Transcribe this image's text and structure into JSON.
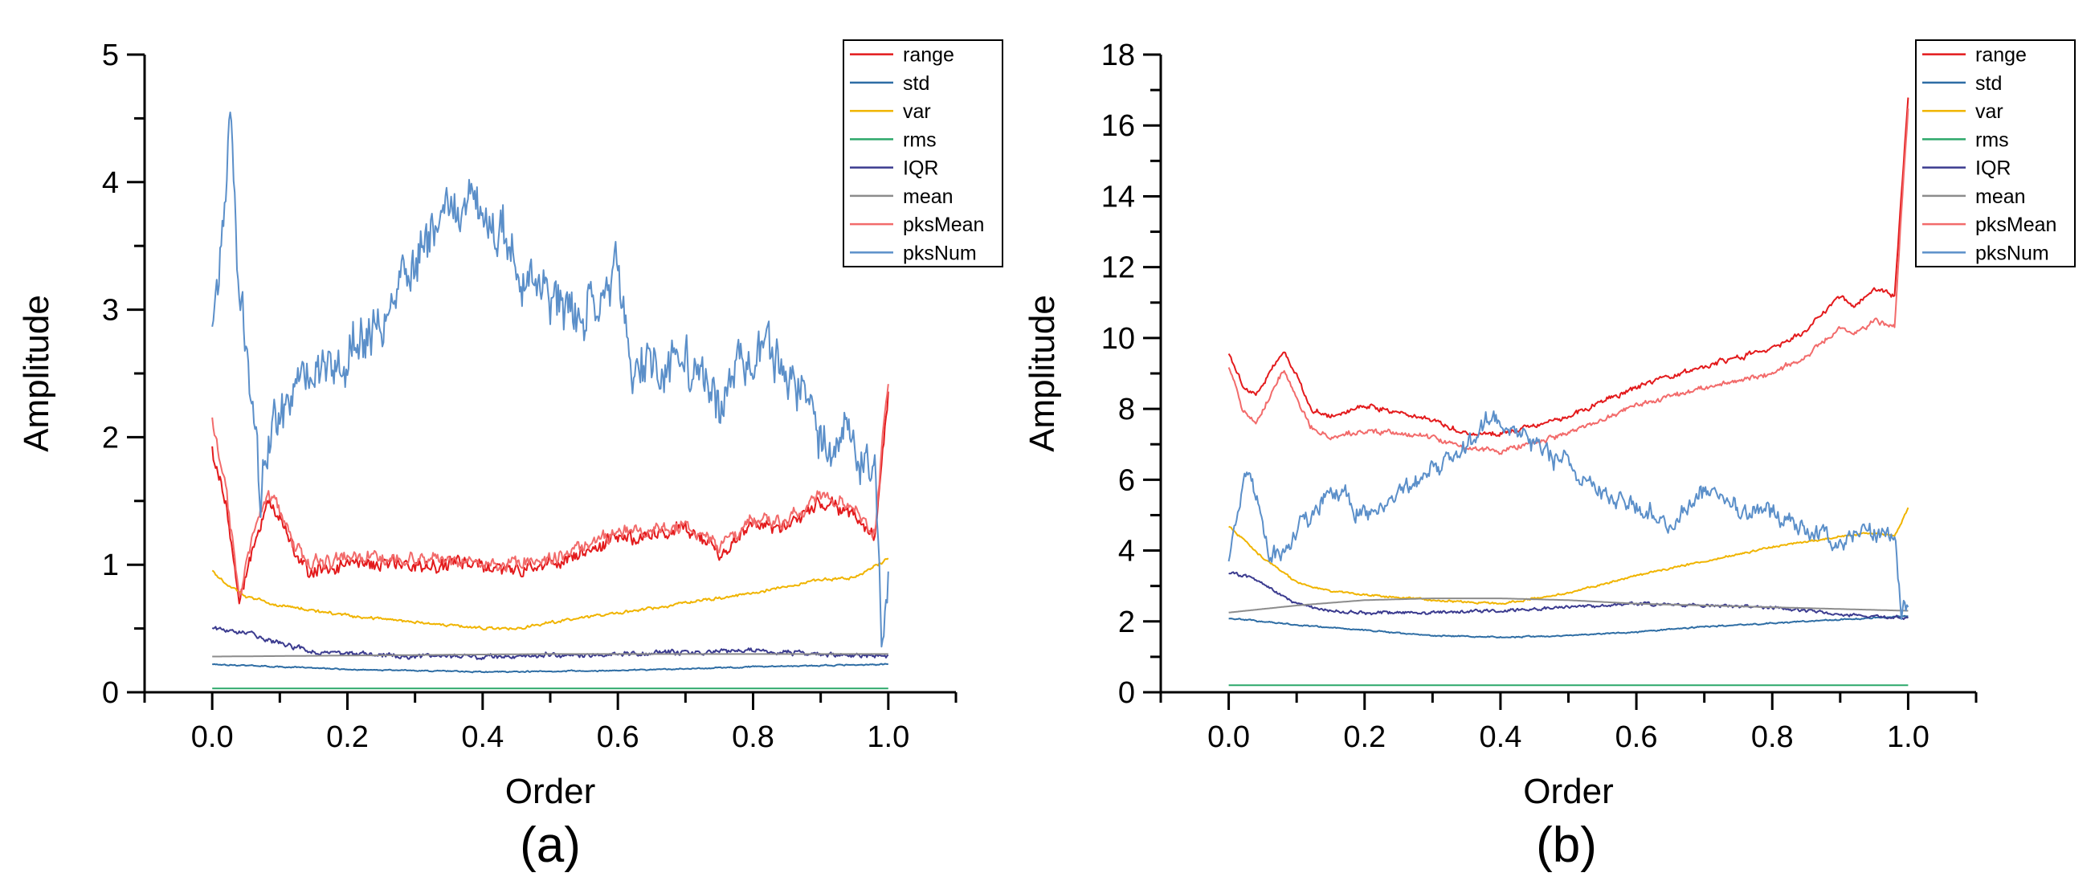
{
  "chart_data": [
    {
      "type": "line",
      "panel_label": "(a)",
      "xlabel": "Order",
      "ylabel": "Amplitude",
      "xlim": [
        -0.1,
        1.1
      ],
      "ylim": [
        0,
        5
      ],
      "xticks": [
        0.0,
        0.2,
        0.4,
        0.6,
        0.8,
        1.0
      ],
      "xtick_labels": [
        "0.0",
        "0.2",
        "0.4",
        "0.6",
        "0.8",
        "1.0"
      ],
      "yticks": [
        0,
        1,
        2,
        3,
        4,
        5
      ],
      "ytick_labels": [
        "0",
        "1",
        "2",
        "3",
        "4",
        "5"
      ],
      "legend_position": "top-right",
      "series": [
        {
          "name": "range",
          "color": "#e31a1c",
          "noise": 0.06,
          "x": [
            0,
            0.02,
            0.04,
            0.06,
            0.08,
            0.1,
            0.12,
            0.14,
            0.2,
            0.3,
            0.4,
            0.45,
            0.5,
            0.6,
            0.7,
            0.75,
            0.8,
            0.85,
            0.9,
            0.95,
            0.98,
            1.0
          ],
          "y": [
            1.9,
            1.5,
            0.7,
            1.1,
            1.5,
            1.4,
            1.1,
            0.95,
            1.0,
            1.0,
            1.0,
            0.95,
            1.0,
            1.2,
            1.3,
            1.1,
            1.3,
            1.3,
            1.5,
            1.4,
            1.2,
            2.3
          ]
        },
        {
          "name": "std",
          "color": "#2e6da4",
          "noise": 0.005,
          "x": [
            0,
            0.2,
            0.4,
            0.6,
            0.8,
            1.0
          ],
          "y": [
            0.22,
            0.18,
            0.16,
            0.17,
            0.2,
            0.22
          ]
        },
        {
          "name": "var",
          "color": "#f0b400",
          "noise": 0.012,
          "x": [
            0,
            0.02,
            0.05,
            0.1,
            0.2,
            0.3,
            0.4,
            0.45,
            0.5,
            0.6,
            0.7,
            0.8,
            0.9,
            0.95,
            1.0
          ],
          "y": [
            0.95,
            0.85,
            0.75,
            0.68,
            0.6,
            0.55,
            0.5,
            0.5,
            0.55,
            0.62,
            0.7,
            0.78,
            0.88,
            0.9,
            1.05
          ]
        },
        {
          "name": "rms",
          "color": "#2ca86a",
          "noise": 0,
          "x": [
            0,
            1.0
          ],
          "y": [
            0.03,
            0.03
          ]
        },
        {
          "name": "IQR",
          "color": "#3b3b8f",
          "noise": 0.02,
          "x": [
            0,
            0.05,
            0.1,
            0.15,
            0.2,
            0.3,
            0.4,
            0.5,
            0.6,
            0.7,
            0.8,
            0.9,
            1.0
          ],
          "y": [
            0.5,
            0.48,
            0.38,
            0.32,
            0.3,
            0.28,
            0.28,
            0.29,
            0.3,
            0.31,
            0.32,
            0.3,
            0.28
          ]
        },
        {
          "name": "mean",
          "color": "#8c8c8c",
          "noise": 0,
          "x": [
            0,
            0.5,
            1.0
          ],
          "y": [
            0.28,
            0.3,
            0.3
          ]
        },
        {
          "name": "pksMean",
          "color": "#f26b6b",
          "noise": 0.06,
          "x": [
            0,
            0.02,
            0.04,
            0.06,
            0.08,
            0.1,
            0.12,
            0.14,
            0.2,
            0.3,
            0.4,
            0.45,
            0.5,
            0.6,
            0.7,
            0.75,
            0.8,
            0.85,
            0.9,
            0.95,
            0.98,
            1.0
          ],
          "y": [
            2.15,
            1.6,
            0.75,
            1.2,
            1.55,
            1.45,
            1.15,
            1.0,
            1.05,
            1.05,
            1.0,
            1.0,
            1.05,
            1.25,
            1.3,
            1.15,
            1.35,
            1.35,
            1.55,
            1.45,
            1.25,
            2.45
          ]
        },
        {
          "name": "pksNum",
          "color": "#5b8fc9",
          "noise": 0.22,
          "x": [
            0,
            0.01,
            0.02,
            0.025,
            0.03,
            0.04,
            0.06,
            0.07,
            0.08,
            0.1,
            0.15,
            0.2,
            0.25,
            0.3,
            0.35,
            0.4,
            0.45,
            0.5,
            0.55,
            0.6,
            0.62,
            0.65,
            0.7,
            0.75,
            0.8,
            0.85,
            0.9,
            0.95,
            0.98,
            0.99,
            1.0
          ],
          "y": [
            2.8,
            3.3,
            4.0,
            4.5,
            4.3,
            3.2,
            2.2,
            1.6,
            1.9,
            2.2,
            2.5,
            2.7,
            2.9,
            3.4,
            3.8,
            3.85,
            3.4,
            3.1,
            2.9,
            3.3,
            2.5,
            2.5,
            2.6,
            2.3,
            2.7,
            2.5,
            2.0,
            2.0,
            1.6,
            0.6,
            0.9
          ]
        }
      ]
    },
    {
      "type": "line",
      "panel_label": "(b)",
      "xlabel": "Order",
      "ylabel": "Amplitude",
      "xlim": [
        -0.1,
        1.1
      ],
      "ylim": [
        0,
        18
      ],
      "xticks": [
        0.0,
        0.2,
        0.4,
        0.6,
        0.8,
        1.0
      ],
      "xtick_labels": [
        "0.0",
        "0.2",
        "0.4",
        "0.6",
        "0.8",
        "1.0"
      ],
      "yticks": [
        0,
        2,
        4,
        6,
        8,
        10,
        12,
        14,
        16,
        18
      ],
      "ytick_labels": [
        "0",
        "2",
        "4",
        "6",
        "8",
        "10",
        "12",
        "14",
        "16",
        "18"
      ],
      "legend_position": "top-right",
      "series": [
        {
          "name": "range",
          "color": "#e31a1c",
          "noise": 0.08,
          "x": [
            0,
            0.02,
            0.04,
            0.06,
            0.08,
            0.1,
            0.12,
            0.15,
            0.2,
            0.3,
            0.35,
            0.4,
            0.5,
            0.6,
            0.7,
            0.8,
            0.85,
            0.9,
            0.92,
            0.95,
            0.98,
            0.99,
            1.0
          ],
          "y": [
            9.6,
            8.7,
            8.4,
            9.0,
            9.6,
            9.0,
            8.0,
            7.8,
            8.1,
            7.7,
            7.3,
            7.3,
            7.8,
            8.6,
            9.2,
            9.7,
            10.2,
            11.2,
            10.9,
            11.4,
            11.2,
            14.0,
            16.8
          ]
        },
        {
          "name": "std",
          "color": "#2e6da4",
          "noise": 0.02,
          "x": [
            0,
            0.1,
            0.2,
            0.3,
            0.4,
            0.5,
            0.6,
            0.7,
            0.8,
            0.9,
            1.0
          ],
          "y": [
            2.1,
            1.9,
            1.75,
            1.6,
            1.55,
            1.6,
            1.7,
            1.85,
            1.95,
            2.05,
            2.15
          ]
        },
        {
          "name": "var",
          "color": "#f0b400",
          "noise": 0.03,
          "x": [
            0,
            0.05,
            0.1,
            0.15,
            0.2,
            0.3,
            0.4,
            0.5,
            0.6,
            0.7,
            0.8,
            0.9,
            0.95,
            0.98,
            1.0
          ],
          "y": [
            4.7,
            3.8,
            3.1,
            2.85,
            2.75,
            2.6,
            2.5,
            2.8,
            3.3,
            3.7,
            4.1,
            4.4,
            4.5,
            4.4,
            5.2
          ]
        },
        {
          "name": "rms",
          "color": "#2ca86a",
          "noise": 0,
          "x": [
            0,
            1.0
          ],
          "y": [
            0.2,
            0.2
          ]
        },
        {
          "name": "IQR",
          "color": "#3b3b8f",
          "noise": 0.05,
          "x": [
            0,
            0.05,
            0.1,
            0.15,
            0.2,
            0.3,
            0.4,
            0.5,
            0.6,
            0.7,
            0.8,
            0.9,
            1.0
          ],
          "y": [
            3.4,
            3.1,
            2.5,
            2.3,
            2.25,
            2.25,
            2.3,
            2.4,
            2.5,
            2.45,
            2.4,
            2.2,
            2.1
          ]
        },
        {
          "name": "mean",
          "color": "#8c8c8c",
          "noise": 0,
          "x": [
            0,
            0.1,
            0.2,
            0.3,
            0.4,
            0.5,
            0.6,
            0.7,
            0.8,
            0.9,
            1.0
          ],
          "y": [
            2.25,
            2.45,
            2.6,
            2.65,
            2.65,
            2.6,
            2.5,
            2.45,
            2.4,
            2.35,
            2.3
          ]
        },
        {
          "name": "pksMean",
          "color": "#f26b6b",
          "noise": 0.08,
          "x": [
            0,
            0.02,
            0.04,
            0.06,
            0.08,
            0.1,
            0.12,
            0.15,
            0.2,
            0.3,
            0.35,
            0.4,
            0.5,
            0.6,
            0.7,
            0.8,
            0.85,
            0.9,
            0.92,
            0.95,
            0.98,
            0.99,
            1.0
          ],
          "y": [
            9.2,
            8.0,
            7.6,
            8.3,
            9.1,
            8.3,
            7.5,
            7.2,
            7.4,
            7.2,
            6.9,
            6.8,
            7.3,
            8.1,
            8.6,
            9.0,
            9.5,
            10.3,
            10.1,
            10.5,
            10.3,
            13.5,
            16.5
          ]
        },
        {
          "name": "pksNum",
          "color": "#5b8fc9",
          "noise": 0.28,
          "x": [
            0,
            0.02,
            0.03,
            0.04,
            0.06,
            0.07,
            0.08,
            0.1,
            0.15,
            0.2,
            0.25,
            0.3,
            0.35,
            0.38,
            0.4,
            0.45,
            0.5,
            0.55,
            0.6,
            0.65,
            0.7,
            0.75,
            0.8,
            0.85,
            0.9,
            0.95,
            0.98,
            0.99,
            1.0
          ],
          "y": [
            3.9,
            5.8,
            6.6,
            5.6,
            3.9,
            4.0,
            3.8,
            4.5,
            5.8,
            5.0,
            5.6,
            6.3,
            6.9,
            7.7,
            7.6,
            7.0,
            6.4,
            5.6,
            5.3,
            4.7,
            5.7,
            5.2,
            5.0,
            4.6,
            4.3,
            4.5,
            4.4,
            2.3,
            2.6
          ]
        }
      ]
    }
  ]
}
